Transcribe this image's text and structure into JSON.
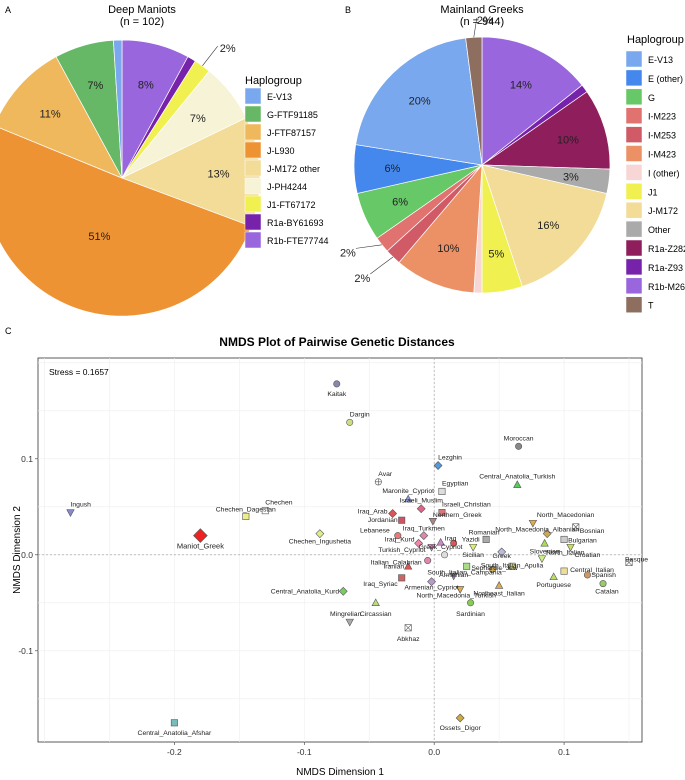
{
  "panels": {
    "a": "A",
    "b": "B",
    "c": "C"
  },
  "chart_data": [
    {
      "type": "pie",
      "title": "Deep Maniots",
      "subtitle": "(n = 102)",
      "legend_title": "Haplogroup",
      "legend_position": "right",
      "slices": [
        {
          "label": "R1b-FTE77744",
          "value": 8,
          "color": "#9966dd",
          "text": "8%"
        },
        {
          "label": "R1a-BY61693",
          "value": 1,
          "color": "#7722aa",
          "text": ""
        },
        {
          "label": "J1-FT67172",
          "value": 2,
          "color": "#f0f050",
          "text": "2%"
        },
        {
          "label": "J-PH4244",
          "value": 7,
          "color": "#f7f3d6",
          "text": "7%"
        },
        {
          "label": "J-M172 other",
          "value": 13,
          "color": "#f2dc98",
          "text": "13%"
        },
        {
          "label": "J-L930",
          "value": 51,
          "color": "#ee9333",
          "text": "51%"
        },
        {
          "label": "J-FTF87157",
          "value": 11,
          "color": "#efb85c",
          "text": "11%"
        },
        {
          "label": "G-FTF91185",
          "value": 7,
          "color": "#66b866",
          "text": "7%"
        },
        {
          "label": "E-V13",
          "value": 1,
          "color": "#79a8ee",
          "text": ""
        }
      ],
      "legend": [
        {
          "label": "E-V13",
          "color": "#79a8ee"
        },
        {
          "label": "G-FTF91185",
          "color": "#66b866"
        },
        {
          "label": "J-FTF87157",
          "color": "#efb85c"
        },
        {
          "label": "J-L930",
          "color": "#ee9333"
        },
        {
          "label": "J-M172 other",
          "color": "#f2dc98"
        },
        {
          "label": "J-PH4244",
          "color": "#f7f3d6"
        },
        {
          "label": "J1-FT67172",
          "color": "#f0f050"
        },
        {
          "label": "R1a-BY61693",
          "color": "#7722aa"
        },
        {
          "label": "R1b-FTE77744",
          "color": "#9966dd"
        }
      ]
    },
    {
      "type": "pie",
      "title": "Mainland Greeks",
      "subtitle": "(n = 944)",
      "legend_title": "Haplogroup",
      "legend_position": "right",
      "slices": [
        {
          "label": "R1b-M269",
          "value": 14,
          "color": "#9966dd",
          "text": "14%"
        },
        {
          "label": "R1a-Z93",
          "value": 1,
          "color": "#7722aa",
          "text": ""
        },
        {
          "label": "R1a-Z282",
          "value": 10,
          "color": "#8e1f5c",
          "text": "10%"
        },
        {
          "label": "Other",
          "value": 3,
          "color": "#aaaaaa",
          "text": "3%"
        },
        {
          "label": "J-M172",
          "value": 16,
          "color": "#f2dc98",
          "text": "16%"
        },
        {
          "label": "J1",
          "value": 5,
          "color": "#f0f050",
          "text": "5%"
        },
        {
          "label": "I (other)",
          "value": 1,
          "color": "#f8d6d6",
          "text": ""
        },
        {
          "label": "I-M423",
          "value": 10,
          "color": "#ec9166",
          "text": "10%"
        },
        {
          "label": "I-M253",
          "value": 2,
          "color": "#d05a66",
          "text": "2%"
        },
        {
          "label": "I-M223",
          "value": 2,
          "color": "#e07270",
          "text": "2%"
        },
        {
          "label": "G",
          "value": 6,
          "color": "#66c866",
          "text": "6%"
        },
        {
          "label": "E (other)",
          "value": 6,
          "color": "#4488ee",
          "text": "6%"
        },
        {
          "label": "E-V13",
          "value": 20,
          "color": "#79a8ee",
          "text": "20%"
        },
        {
          "label": "T",
          "value": 2,
          "color": "#8e6e5e",
          "text": "2%"
        }
      ],
      "legend": [
        {
          "label": "E-V13",
          "color": "#79a8ee"
        },
        {
          "label": "E (other)",
          "color": "#4488ee"
        },
        {
          "label": "G",
          "color": "#66c866"
        },
        {
          "label": "I-M223",
          "color": "#e07270"
        },
        {
          "label": "I-M253",
          "color": "#d05a66"
        },
        {
          "label": "I-M423",
          "color": "#ec9166"
        },
        {
          "label": "I (other)",
          "color": "#f8d6d6"
        },
        {
          "label": "J1",
          "color": "#f0f050"
        },
        {
          "label": "J-M172",
          "color": "#f2dc98"
        },
        {
          "label": "Other",
          "color": "#aaaaaa"
        },
        {
          "label": "R1a-Z282",
          "color": "#8e1f5c"
        },
        {
          "label": "R1a-Z93",
          "color": "#7722aa"
        },
        {
          "label": "R1b-M269",
          "color": "#9966dd"
        },
        {
          "label": "T",
          "color": "#8e6e5e"
        }
      ]
    },
    {
      "type": "scatter",
      "title": "NMDS Plot of Pairwise Genetic Distances",
      "xlabel": "NMDS Dimension 1",
      "ylabel": "NMDS Dimension 2",
      "annotation": "Stress = 0.1657",
      "xlim": [
        -0.305,
        0.16
      ],
      "ylim": [
        -0.195,
        0.205
      ],
      "xticks": [
        -0.2,
        -0.1,
        0.0,
        0.1
      ],
      "xtick_labels": [
        "-0.2",
        "-0.1",
        "0.0",
        "0.1"
      ],
      "yticks": [
        -0.1,
        0.0,
        0.1
      ],
      "ytick_labels": [
        "-0.1",
        "0.0",
        "0.1"
      ],
      "grid": true,
      "points": [
        {
          "name": "Kaitak",
          "x": -0.075,
          "y": 0.178,
          "shape": "circle",
          "color": "#8888aa",
          "label": "Kaitak"
        },
        {
          "name": "Dargin",
          "x": -0.065,
          "y": 0.138,
          "shape": "circle",
          "color": "#ccdd88",
          "label": "Dargin"
        },
        {
          "name": "Moroccan",
          "x": 0.065,
          "y": 0.113,
          "shape": "circle",
          "color": "#888888",
          "label": "Moroccan"
        },
        {
          "name": "Lezghin",
          "x": 0.003,
          "y": 0.093,
          "shape": "diamond",
          "color": "#5599dd",
          "label": "Lezghin"
        },
        {
          "name": "Central_Anatolia_Turkish",
          "x": 0.064,
          "y": 0.073,
          "shape": "triangle",
          "color": "#55cc55",
          "label": "Central_Anatolia_Turkish"
        },
        {
          "name": "Avar",
          "x": -0.043,
          "y": 0.076,
          "shape": "plus",
          "color": "#ffffff",
          "label": "Avar"
        },
        {
          "name": "Egyptian",
          "x": 0.006,
          "y": 0.066,
          "shape": "square",
          "color": "#dddddd",
          "label": "Egyptian"
        },
        {
          "name": "Maronite_Cypriot",
          "x": -0.02,
          "y": 0.058,
          "shape": "triangle",
          "color": "#8899dd",
          "label": "Maronite_Cypriot"
        },
        {
          "name": "Ingush",
          "x": -0.28,
          "y": 0.044,
          "shape": "tri-down",
          "color": "#8888cc",
          "label": "Ingush"
        },
        {
          "name": "Chechen",
          "x": -0.13,
          "y": 0.046,
          "shape": "square",
          "color": "#ffffff",
          "label": "Chechen"
        },
        {
          "name": "Chechen_Dagestan",
          "x": -0.145,
          "y": 0.04,
          "shape": "square",
          "color": "#eeee88",
          "label": "Chechen_Dagestan"
        },
        {
          "name": "Israeli_Muslim",
          "x": -0.01,
          "y": 0.048,
          "shape": "diamond",
          "color": "#dd6688",
          "label": "Israeli_Muslim"
        },
        {
          "name": "Israeli_Christian",
          "x": 0.006,
          "y": 0.044,
          "shape": "square",
          "color": "#dd7777",
          "label": "Israeli_Christian"
        },
        {
          "name": "Iraq_Arab",
          "x": -0.032,
          "y": 0.043,
          "shape": "diamond",
          "color": "#dd5555",
          "label": "Iraq_Arab"
        },
        {
          "name": "Jordanian",
          "x": -0.025,
          "y": 0.036,
          "shape": "square",
          "color": "#cc5566",
          "label": "Jordanian"
        },
        {
          "name": "Northern_Greek",
          "x": -0.001,
          "y": 0.035,
          "shape": "tri-down",
          "color": "#aa8888",
          "label": "Northern_Greek"
        },
        {
          "name": "Chechen_Ingushetia",
          "x": -0.088,
          "y": 0.022,
          "shape": "diamond",
          "color": "#ddee88",
          "label": "Chechen_Ingushetia"
        },
        {
          "name": "North_Macedonian",
          "x": 0.076,
          "y": 0.033,
          "shape": "tri-down",
          "color": "#ddaa55",
          "label": "North_Macedonian"
        },
        {
          "name": "Bosnian",
          "x": 0.109,
          "y": 0.029,
          "shape": "cross-box",
          "color": "#ffffff",
          "label": "Bosnian"
        },
        {
          "name": "North_Macedonia_Albanian",
          "x": 0.087,
          "y": 0.022,
          "shape": "diamond",
          "color": "#ccaa55",
          "label": "North_Macedonia_Albanian"
        },
        {
          "name": "Bulgarian",
          "x": 0.1,
          "y": 0.016,
          "shape": "square",
          "color": "#cccccc",
          "label": "Bulgarian"
        },
        {
          "name": "Lebanese",
          "x": -0.028,
          "y": 0.02,
          "shape": "circle",
          "color": "#ee7777",
          "label": "Lebanese"
        },
        {
          "name": "Iraq_Turkmen",
          "x": -0.008,
          "y": 0.02,
          "shape": "diamond",
          "color": "#dd88aa",
          "label": "Iraq_Turkmen"
        },
        {
          "name": "Romanian",
          "x": 0.04,
          "y": 0.016,
          "shape": "square",
          "color": "#aaaaaa",
          "label": "Romanian"
        },
        {
          "name": "Slovenian",
          "x": 0.085,
          "y": 0.012,
          "shape": "triangle",
          "color": "#aadd55",
          "label": "Slovenian"
        },
        {
          "name": "Croatian",
          "x": 0.105,
          "y": 0.008,
          "shape": "tri-down",
          "color": "#ccdd66",
          "label": "Croatian"
        },
        {
          "name": "Maniot_Greek",
          "x": -0.18,
          "y": 0.02,
          "shape": "diamond",
          "color": "#ee2222",
          "label": "Maniot_Greek",
          "big": true
        },
        {
          "name": "Iraq_Kurd",
          "x": -0.012,
          "y": 0.012,
          "shape": "diamond",
          "color": "#ee88aa",
          "label": "Iraq_Kurd"
        },
        {
          "name": "Iraq",
          "x": 0.005,
          "y": 0.013,
          "shape": "triangle",
          "color": "#cc88cc",
          "label": "Iraq"
        },
        {
          "name": "Yazidi",
          "x": 0.015,
          "y": 0.012,
          "shape": "circle",
          "color": "#dd5555",
          "label": "Yazidi"
        },
        {
          "name": "Turkish_Cypriot",
          "x": -0.002,
          "y": 0.008,
          "shape": "tri-down",
          "color": "#dd88bb",
          "label": "Turkish_Cypriot"
        },
        {
          "name": "Sicilian",
          "x": 0.03,
          "y": 0.008,
          "shape": "tri-down",
          "color": "#ddee77",
          "label": "Sicilian"
        },
        {
          "name": "Greek",
          "x": 0.052,
          "y": 0.003,
          "shape": "diamond",
          "color": "#bbbbdd",
          "label": "Greek"
        },
        {
          "name": "Greek_Cypriot",
          "x": 0.008,
          "y": 0.0,
          "shape": "circle",
          "color": "#dddddd",
          "label": "Greek_Cypriot"
        },
        {
          "name": "North_Italian",
          "x": 0.083,
          "y": -0.004,
          "shape": "tri-down",
          "color": "#ccee88",
          "label": "North_Italian"
        },
        {
          "name": "Italian_Calabrian",
          "x": -0.005,
          "y": -0.006,
          "shape": "circle",
          "color": "#dd88aa",
          "label": "Italian_Calabrian"
        },
        {
          "name": "Basque",
          "x": 0.15,
          "y": -0.008,
          "shape": "cross-box",
          "color": "#ffffff",
          "label": "Basque"
        },
        {
          "name": "South_Italian_Campania",
          "x": 0.025,
          "y": -0.012,
          "shape": "square",
          "color": "#aadd88",
          "label": "South_Italian_Campania"
        },
        {
          "name": "South_Italian_Apulia",
          "x": 0.06,
          "y": -0.012,
          "shape": "square",
          "color": "#dddd88",
          "label": "South_Italian_Apulia"
        },
        {
          "name": "Central_Italian",
          "x": 0.1,
          "y": -0.017,
          "shape": "square",
          "color": "#eedd99",
          "label": "Central_Italian"
        },
        {
          "name": "Iranian",
          "x": -0.02,
          "y": -0.012,
          "shape": "triangle",
          "color": "#dd5555",
          "label": "Iranian"
        },
        {
          "name": "Sephardic_Jew",
          "x": 0.045,
          "y": -0.015,
          "shape": "circle",
          "color": "#ccaa55",
          "label": "Sephardic_Jew"
        },
        {
          "name": "Spanish",
          "x": 0.118,
          "y": -0.021,
          "shape": "circle",
          "color": "#cc9966",
          "label": "Spanish"
        },
        {
          "name": "Portuguese",
          "x": 0.092,
          "y": -0.023,
          "shape": "triangle",
          "color": "#bbdd66",
          "label": "Portuguese"
        },
        {
          "name": "Armenian",
          "x": 0.015,
          "y": -0.022,
          "shape": "tri-down",
          "color": "#9988bb",
          "label": "Armenian"
        },
        {
          "name": "Iraq_Syriac",
          "x": -0.025,
          "y": -0.024,
          "shape": "square",
          "color": "#cc6666",
          "label": "Iraq_Syriac"
        },
        {
          "name": "Catalan",
          "x": 0.13,
          "y": -0.03,
          "shape": "circle",
          "color": "#99cc66",
          "label": "Catalan"
        },
        {
          "name": "Armenian_Cypriot",
          "x": -0.002,
          "y": -0.028,
          "shape": "diamond",
          "color": "#bb99cc",
          "label": "Armenian_Cypriot"
        },
        {
          "name": "Northeast_Italian",
          "x": 0.05,
          "y": -0.032,
          "shape": "triangle",
          "color": "#ddaa55",
          "label": "Northeast_Italian"
        },
        {
          "name": "Central_Anatolia_Kurd",
          "x": -0.07,
          "y": -0.038,
          "shape": "diamond",
          "color": "#77cc66",
          "label": "Central_Anatolia_Kurd"
        },
        {
          "name": "North_Macedonia_Turkish",
          "x": 0.02,
          "y": -0.036,
          "shape": "tri-down",
          "color": "#ddaa55",
          "label": "North_Macedonia_Turkish"
        },
        {
          "name": "Circassian",
          "x": -0.045,
          "y": -0.05,
          "shape": "triangle",
          "color": "#bbdd77",
          "label": "Circassian"
        },
        {
          "name": "Sardinian",
          "x": 0.028,
          "y": -0.05,
          "shape": "circle",
          "color": "#88cc55",
          "label": "Sardinian"
        },
        {
          "name": "Mingrelian",
          "x": -0.065,
          "y": -0.07,
          "shape": "tri-down",
          "color": "#aaaaaa",
          "label": "Mingrelian"
        },
        {
          "name": "Abkhaz",
          "x": -0.02,
          "y": -0.076,
          "shape": "cross-box",
          "color": "#ffffff",
          "label": "Abkhaz"
        },
        {
          "name": "Ossets_Digor",
          "x": 0.02,
          "y": -0.17,
          "shape": "diamond",
          "color": "#ccaa44",
          "label": "Ossets_Digor"
        },
        {
          "name": "Central_Anatolia_Afshar",
          "x": -0.2,
          "y": -0.175,
          "shape": "square",
          "color": "#77bbbb",
          "label": "Central_Anatolia_Afshar"
        }
      ]
    }
  ]
}
